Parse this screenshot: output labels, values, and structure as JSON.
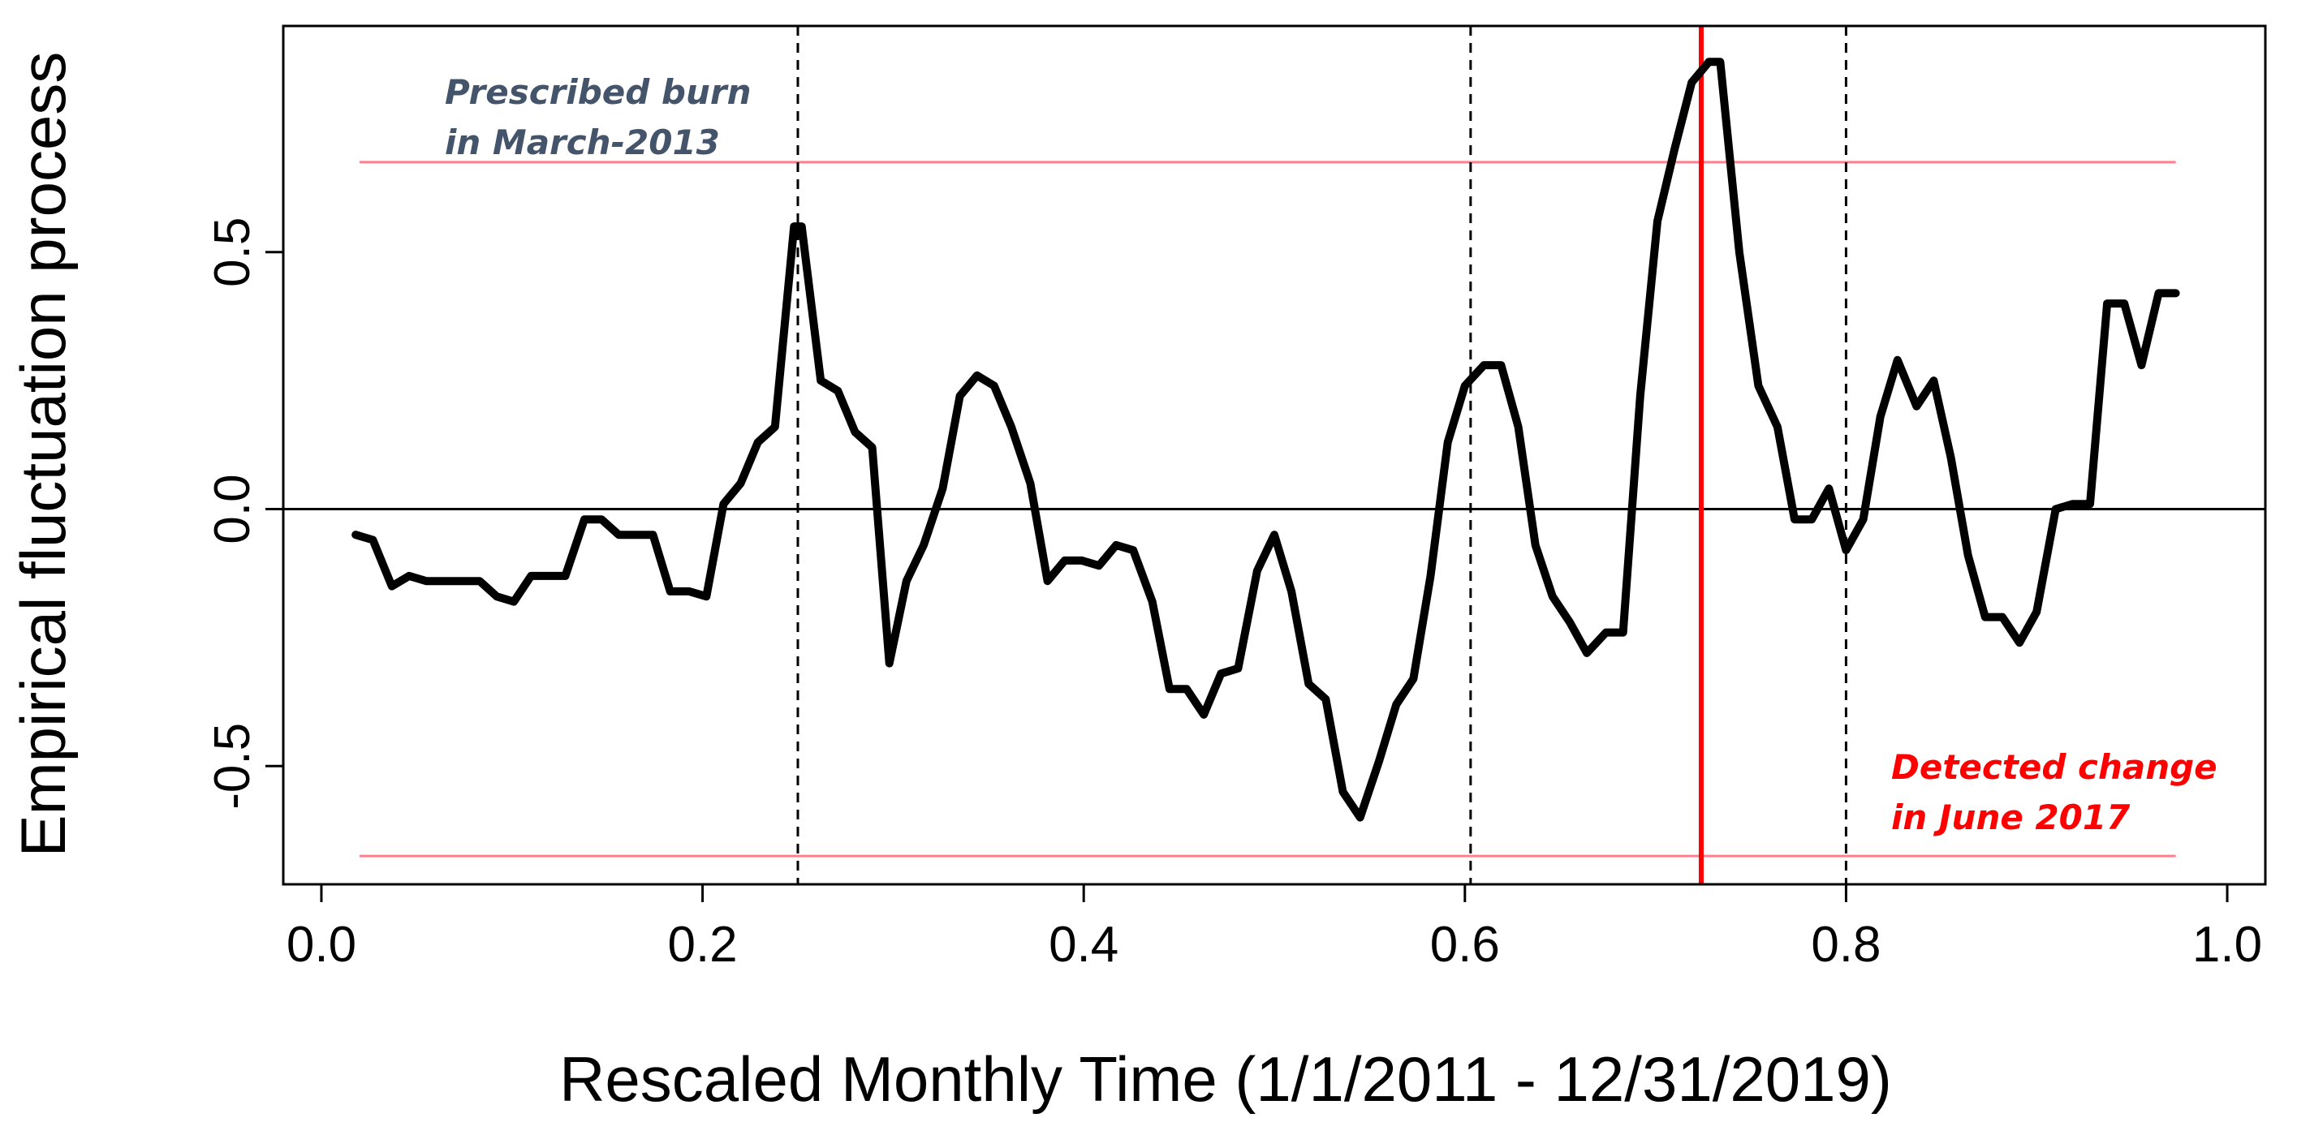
{
  "chart_data": {
    "type": "line",
    "title": "",
    "xlabel": "Rescaled Monthly Time (1/1/2011 - 12/31/2019)",
    "ylabel": "Empirical fluctuation process",
    "xlim": [
      -0.02,
      1.02
    ],
    "ylim": [
      -0.73,
      0.94
    ],
    "x_ticks": [
      {
        "value": 0.0,
        "label": "0.0"
      },
      {
        "value": 0.2,
        "label": "0.2"
      },
      {
        "value": 0.4,
        "label": "0.4"
      },
      {
        "value": 0.6,
        "label": "0.6"
      },
      {
        "value": 0.8,
        "label": "0.8"
      },
      {
        "value": 1.0,
        "label": "1.0"
      }
    ],
    "y_ticks": [
      {
        "value": 0.5,
        "label": "0.5"
      },
      {
        "value": 0.0,
        "label": "0.0"
      },
      {
        "value": -0.5,
        "label": "-0.5"
      }
    ],
    "boundaries": {
      "upper": 0.675,
      "lower": -0.675,
      "x_start": 0.02,
      "x_end": 0.973,
      "color": "#ff7f8e"
    },
    "zero_line": {
      "y": 0.0,
      "color": "#000000"
    },
    "vlines_dashed": [
      0.25,
      0.603,
      0.8
    ],
    "change_line": {
      "x": 0.724,
      "color": "#ff0000"
    },
    "series": [
      {
        "color": "#000000",
        "x": [
          0.018,
          0.027,
          0.037,
          0.046,
          0.055,
          0.064,
          0.073,
          0.083,
          0.092,
          0.101,
          0.11,
          0.119,
          0.128,
          0.138,
          0.147,
          0.156,
          0.165,
          0.174,
          0.183,
          0.193,
          0.202,
          0.211,
          0.22,
          0.229,
          0.238,
          0.248,
          0.252,
          0.262,
          0.271,
          0.28,
          0.289,
          0.298,
          0.307,
          0.316,
          0.326,
          0.335,
          0.344,
          0.353,
          0.362,
          0.372,
          0.381,
          0.39,
          0.399,
          0.408,
          0.417,
          0.426,
          0.436,
          0.445,
          0.454,
          0.463,
          0.472,
          0.481,
          0.491,
          0.5,
          0.509,
          0.518,
          0.527,
          0.536,
          0.545,
          0.555,
          0.564,
          0.573,
          0.582,
          0.591,
          0.6,
          0.61,
          0.619,
          0.628,
          0.637,
          0.646,
          0.655,
          0.664,
          0.674,
          0.683,
          0.692,
          0.701,
          0.71,
          0.719,
          0.728,
          0.734,
          0.744,
          0.754,
          0.764,
          0.773,
          0.782,
          0.791,
          0.8,
          0.809,
          0.818,
          0.827,
          0.837,
          0.846,
          0.855,
          0.864,
          0.873,
          0.882,
          0.891,
          0.9,
          0.91,
          0.919,
          0.928,
          0.937,
          0.946,
          0.955,
          0.964,
          0.973
        ],
        "y": [
          -0.05,
          -0.06,
          -0.15,
          -0.13,
          -0.14,
          -0.14,
          -0.14,
          -0.14,
          -0.17,
          -0.18,
          -0.13,
          -0.13,
          -0.13,
          -0.02,
          -0.02,
          -0.05,
          -0.05,
          -0.05,
          -0.16,
          -0.16,
          -0.17,
          0.01,
          0.05,
          0.13,
          0.16,
          0.55,
          0.55,
          0.25,
          0.23,
          0.15,
          0.12,
          -0.3,
          -0.14,
          -0.07,
          0.04,
          0.22,
          0.26,
          0.24,
          0.16,
          0.05,
          -0.14,
          -0.1,
          -0.1,
          -0.11,
          -0.07,
          -0.08,
          -0.18,
          -0.35,
          -0.35,
          -0.4,
          -0.32,
          -0.31,
          -0.12,
          -0.05,
          -0.16,
          -0.34,
          -0.37,
          -0.55,
          -0.6,
          -0.49,
          -0.38,
          -0.33,
          -0.13,
          0.13,
          0.24,
          0.28,
          0.28,
          0.16,
          -0.07,
          -0.17,
          -0.22,
          -0.28,
          -0.24,
          -0.24,
          0.22,
          0.56,
          0.7,
          0.83,
          0.87,
          0.87,
          0.5,
          0.24,
          0.16,
          -0.02,
          -0.02,
          0.04,
          -0.08,
          -0.02,
          0.18,
          0.29,
          0.2,
          0.25,
          0.1,
          -0.09,
          -0.21,
          -0.21,
          -0.26,
          -0.2,
          0.0,
          0.01,
          0.01,
          0.4,
          0.4,
          0.28,
          0.42,
          0.42
        ]
      }
    ],
    "annotations": [
      {
        "lines": [
          "Prescribed burn",
          "in March-2013"
        ],
        "color": "#44546a"
      },
      {
        "lines": [
          "Detected change",
          "in June 2017"
        ],
        "color": "#ff0000"
      }
    ],
    "grid": false
  }
}
